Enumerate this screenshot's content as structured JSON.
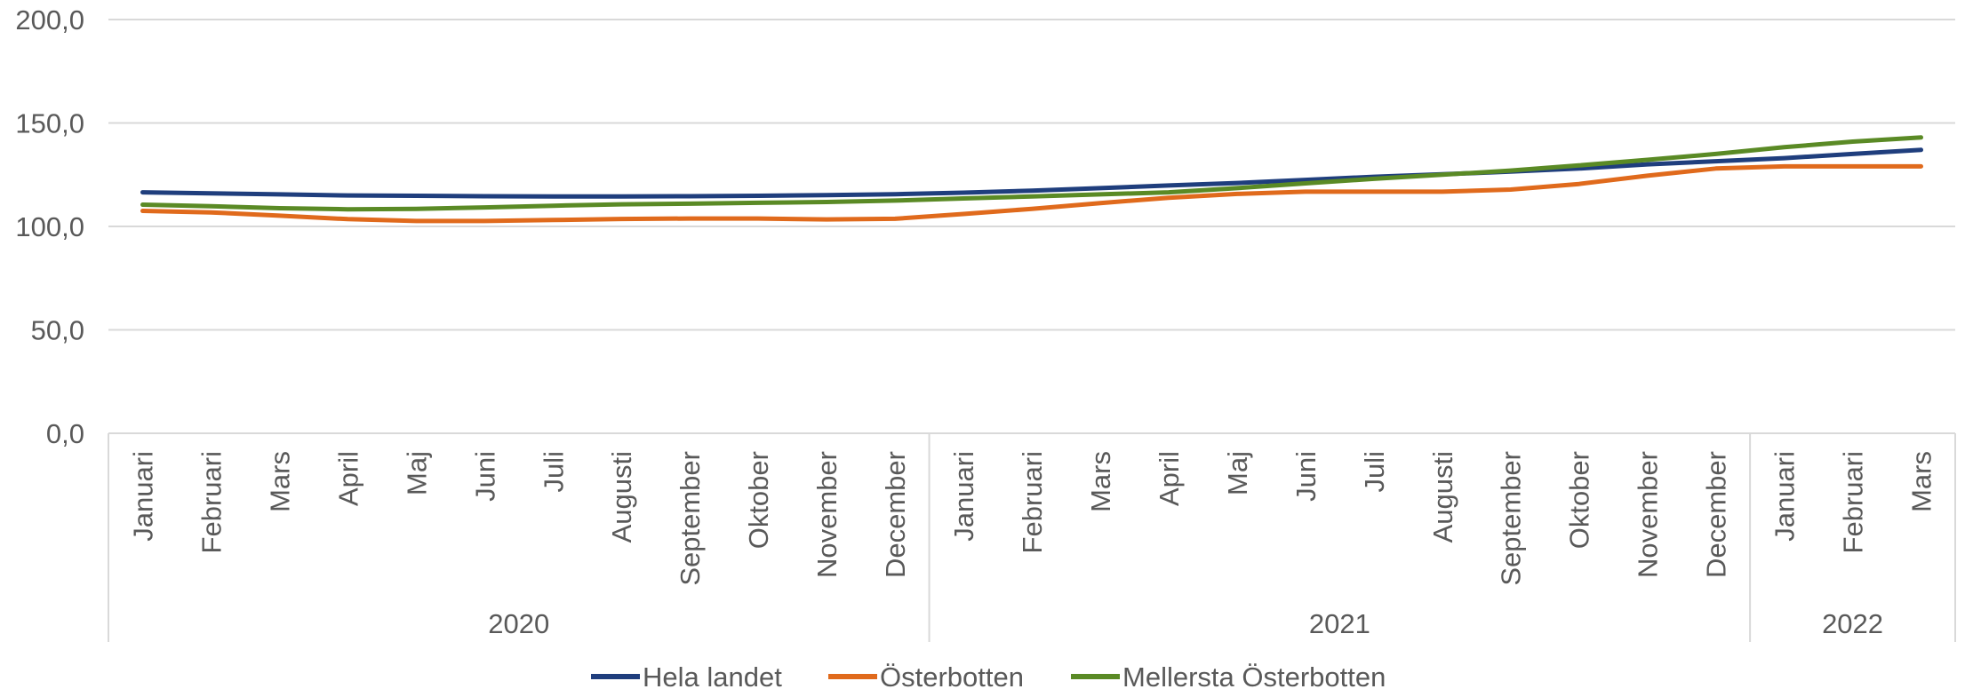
{
  "chart_data": {
    "type": "line",
    "title": "",
    "xlabel": "",
    "ylabel": "",
    "ylim": [
      0,
      200
    ],
    "yticks": [
      "0,0",
      "50,0",
      "100,0",
      "150,0",
      "200,0"
    ],
    "grid": true,
    "legend_position": "bottom",
    "categories": [
      "Januari",
      "Februari",
      "Mars",
      "April",
      "Maj",
      "Juni",
      "Juli",
      "Augusti",
      "September",
      "Oktober",
      "November",
      "December",
      "Januari",
      "Februari",
      "Mars",
      "April",
      "Maj",
      "Juni",
      "Juli",
      "Augusti",
      "September",
      "Oktober",
      "November",
      "December",
      "Januari",
      "Februari",
      "Mars"
    ],
    "year_groups": [
      {
        "label": "2020",
        "count": 12
      },
      {
        "label": "2021",
        "count": 12
      },
      {
        "label": "2022",
        "count": 3
      }
    ],
    "series": [
      {
        "name": "Hela landet",
        "color": "#1f3e7d",
        "values": [
          116.5,
          116.0,
          115.5,
          115.0,
          114.8,
          114.6,
          114.5,
          114.5,
          114.6,
          114.8,
          115.1,
          115.6,
          116.3,
          117.3,
          118.5,
          119.8,
          121.0,
          122.5,
          124.0,
          125.2,
          126.5,
          128.0,
          130.0,
          131.5,
          133.0,
          135.0,
          137.0
        ]
      },
      {
        "name": "Österbotten",
        "color": "#e06a1c",
        "values": [
          107.5,
          106.8,
          105.2,
          103.5,
          102.6,
          102.6,
          103.1,
          103.6,
          103.8,
          103.8,
          103.4,
          103.7,
          106.0,
          108.5,
          111.3,
          113.8,
          115.7,
          116.8,
          116.8,
          116.8,
          117.8,
          120.5,
          124.5,
          128.0,
          129.0,
          129.0,
          129.0
        ]
      },
      {
        "name": "Mellersta Österbotten",
        "color": "#5a8a25",
        "values": [
          110.5,
          109.8,
          108.8,
          108.3,
          108.5,
          109.2,
          110.0,
          110.7,
          111.0,
          111.4,
          111.8,
          112.5,
          113.5,
          114.5,
          115.5,
          116.5,
          118.5,
          120.8,
          123.0,
          125.0,
          127.0,
          129.5,
          132.2,
          135.0,
          138.3,
          141.0,
          143.0
        ]
      }
    ]
  }
}
